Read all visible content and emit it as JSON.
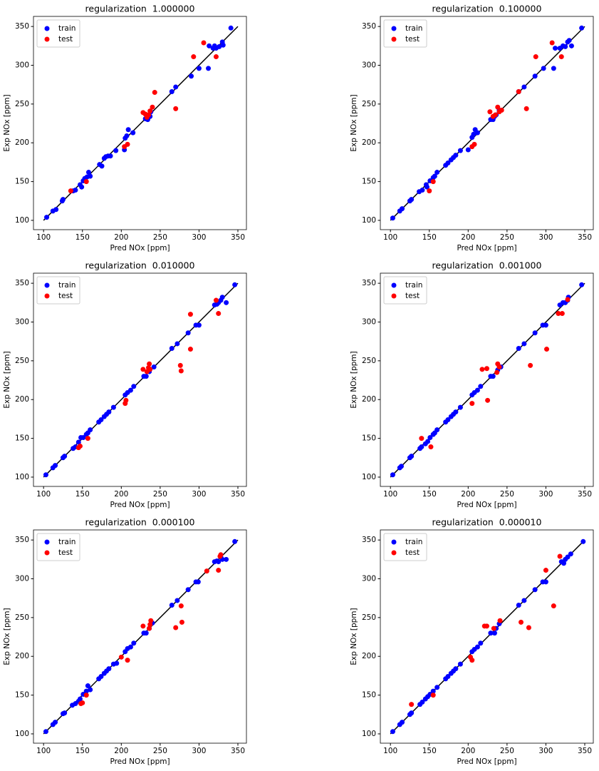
{
  "chart_data": [
    {
      "type": "scatter",
      "title": "regularization  1.000000",
      "xlabel": "Pred NOx [ppm]",
      "ylabel": "Exp NOx [ppm]",
      "xlim": [
        87,
        361
      ],
      "ylim": [
        88,
        363
      ],
      "xticks": [
        100,
        150,
        200,
        250,
        300,
        350
      ],
      "yticks": [
        100,
        150,
        200,
        250,
        300,
        350
      ],
      "legend": "upper left",
      "line": {
        "x": [
          100,
          350
        ],
        "y": [
          100,
          350
        ],
        "color": "#000000"
      },
      "series": [
        {
          "name": "train",
          "color": "#0000ff",
          "x": [
            104,
            112,
            116,
            124,
            125,
            138,
            141,
            147,
            149,
            151,
            153,
            156,
            158,
            160,
            172,
            175,
            178,
            180,
            183,
            186,
            193,
            204,
            205,
            207,
            209,
            215,
            231,
            234,
            237,
            238,
            265,
            270,
            290,
            300,
            312,
            313,
            318,
            320,
            322,
            326,
            330,
            331,
            341
          ],
          "y": [
            104,
            112,
            114,
            125,
            127,
            138,
            139,
            146,
            143,
            151,
            154,
            156,
            162,
            157,
            172,
            170,
            180,
            182,
            183,
            183,
            190,
            191,
            206,
            209,
            217,
            213,
            231,
            230,
            234,
            240,
            266,
            272,
            286,
            296,
            296,
            325,
            322,
            325,
            322,
            324,
            330,
            326,
            348
          ]
        },
        {
          "name": "test",
          "color": "#ff0000",
          "x": [
            135,
            155,
            204,
            208,
            228,
            231,
            233,
            235,
            237,
            240,
            243,
            270,
            293,
            306,
            322
          ],
          "y": [
            138,
            150,
            195,
            198,
            239,
            237,
            233,
            236,
            241,
            246,
            265,
            244,
            311,
            329,
            311
          ]
        }
      ]
    },
    {
      "type": "scatter",
      "title": "regularization  0.100000",
      "xlabel": "Pred NOx [ppm]",
      "ylabel": "Exp NOx [ppm]",
      "xlim": [
        87,
        361
      ],
      "ylim": [
        88,
        363
      ],
      "xticks": [
        100,
        150,
        200,
        250,
        300,
        350
      ],
      "yticks": [
        100,
        150,
        200,
        250,
        300,
        350
      ],
      "legend": "upper left",
      "line": {
        "x": [
          100,
          350
        ],
        "y": [
          100,
          350
        ],
        "color": "#000000"
      },
      "series": [
        {
          "name": "train",
          "color": "#0000ff",
          "x": [
            103,
            112,
            115,
            125,
            127,
            137,
            141,
            146,
            147,
            151,
            155,
            157,
            160,
            171,
            174,
            178,
            181,
            184,
            190,
            200,
            205,
            207,
            209,
            212,
            229,
            232,
            234,
            236,
            240,
            265,
            272,
            286,
            297,
            310,
            312,
            318,
            322,
            325,
            328,
            330,
            333,
            346
          ],
          "y": [
            103,
            112,
            115,
            125,
            127,
            137,
            139,
            146,
            143,
            151,
            155,
            157,
            162,
            171,
            174,
            178,
            181,
            184,
            190,
            191,
            207,
            211,
            217,
            213,
            230,
            230,
            234,
            236,
            242,
            266,
            272,
            286,
            296,
            296,
            322,
            322,
            325,
            324,
            330,
            332,
            325,
            348
          ]
        },
        {
          "name": "test",
          "color": "#ff0000",
          "x": [
            150,
            155,
            205,
            208,
            228,
            232,
            235,
            238,
            240,
            243,
            265,
            275,
            287,
            308,
            320
          ],
          "y": [
            138,
            150,
            195,
            198,
            240,
            234,
            236,
            246,
            240,
            242,
            266,
            244,
            311,
            329,
            311
          ]
        }
      ]
    },
    {
      "type": "scatter",
      "title": "regularization  0.010000",
      "xlabel": "Pred NOx [ppm]",
      "ylabel": "Exp NOx [ppm]",
      "xlim": [
        87,
        361
      ],
      "ylim": [
        88,
        363
      ],
      "xticks": [
        100,
        150,
        200,
        250,
        300,
        350
      ],
      "yticks": [
        100,
        150,
        200,
        250,
        300,
        350
      ],
      "legend": "upper left",
      "line": {
        "x": [
          100,
          350
        ],
        "y": [
          100,
          350
        ],
        "color": "#000000"
      },
      "series": [
        {
          "name": "train",
          "color": "#0000ff",
          "x": [
            103,
            112,
            115,
            125,
            127,
            138,
            141,
            145,
            148,
            151,
            155,
            157,
            160,
            171,
            174,
            178,
            181,
            184,
            190,
            205,
            208,
            212,
            216,
            229,
            232,
            236,
            242,
            265,
            272,
            286,
            296,
            300,
            320,
            323,
            325,
            328,
            330,
            335,
            346
          ],
          "y": [
            103,
            112,
            115,
            125,
            127,
            137,
            139,
            145,
            151,
            151,
            155,
            157,
            161,
            171,
            174,
            178,
            181,
            184,
            190,
            206,
            209,
            212,
            217,
            230,
            230,
            236,
            242,
            266,
            272,
            286,
            296,
            296,
            322,
            323,
            325,
            328,
            332,
            325,
            348
          ]
        },
        {
          "name": "test",
          "color": "#ff0000",
          "x": [
            145,
            147,
            157,
            205,
            206,
            228,
            233,
            235,
            236,
            237,
            276,
            277,
            289,
            289,
            322,
            325
          ],
          "y": [
            138,
            140,
            150,
            195,
            199,
            239,
            236,
            241,
            246,
            239,
            244,
            237,
            310,
            265,
            328,
            311
          ]
        }
      ]
    },
    {
      "type": "scatter",
      "title": "regularization  0.001000",
      "xlabel": "Pred NOx [ppm]",
      "ylabel": "Exp NOx [ppm]",
      "xlim": [
        87,
        361
      ],
      "ylim": [
        88,
        363
      ],
      "xticks": [
        100,
        150,
        200,
        250,
        300,
        350
      ],
      "yticks": [
        100,
        150,
        200,
        250,
        300,
        350
      ],
      "legend": "upper left",
      "line": {
        "x": [
          100,
          350
        ],
        "y": [
          100,
          350
        ],
        "color": "#000000"
      },
      "series": [
        {
          "name": "train",
          "color": "#0000ff",
          "x": [
            103,
            112,
            114,
            125,
            127,
            138,
            140,
            145,
            148,
            151,
            155,
            157,
            160,
            171,
            174,
            178,
            181,
            184,
            190,
            205,
            208,
            212,
            216,
            229,
            232,
            238,
            242,
            265,
            272,
            286,
            296,
            300,
            318,
            322,
            325,
            328,
            329,
            346
          ],
          "y": [
            103,
            112,
            114,
            125,
            127,
            137,
            139,
            143,
            146,
            151,
            155,
            157,
            161,
            171,
            174,
            178,
            181,
            184,
            190,
            206,
            209,
            212,
            217,
            230,
            230,
            238,
            242,
            266,
            272,
            286,
            296,
            296,
            322,
            325,
            325,
            328,
            332,
            348
          ]
        },
        {
          "name": "test",
          "color": "#ff0000",
          "x": [
            140,
            152,
            205,
            218,
            224,
            225,
            237,
            238,
            240,
            280,
            301,
            316,
            321,
            328
          ],
          "y": [
            150,
            139,
            195,
            239,
            240,
            199,
            235,
            246,
            242,
            244,
            265,
            311,
            311,
            329
          ]
        }
      ]
    },
    {
      "type": "scatter",
      "title": "regularization  0.000100",
      "xlabel": "Pred NOx [ppm]",
      "ylabel": "Exp NOx [ppm]",
      "xlim": [
        87,
        361
      ],
      "ylim": [
        88,
        363
      ],
      "xticks": [
        100,
        150,
        200,
        250,
        300,
        350
      ],
      "yticks": [
        100,
        150,
        200,
        250,
        300,
        350
      ],
      "legend": "upper left",
      "line": {
        "x": [
          100,
          350
        ],
        "y": [
          100,
          350
        ],
        "color": "#000000"
      },
      "series": [
        {
          "name": "train",
          "color": "#0000ff",
          "x": [
            103,
            112,
            115,
            125,
            127,
            137,
            141,
            145,
            147,
            151,
            155,
            157,
            160,
            171,
            174,
            178,
            181,
            184,
            190,
            194,
            205,
            208,
            212,
            216,
            229,
            232,
            236,
            240,
            265,
            272,
            286,
            296,
            299,
            320,
            323,
            325,
            328,
            330,
            335,
            346
          ],
          "y": [
            103,
            112,
            115,
            126,
            127,
            137,
            139,
            142,
            145,
            151,
            155,
            162,
            157,
            171,
            174,
            178,
            181,
            184,
            190,
            191,
            206,
            210,
            212,
            217,
            230,
            230,
            236,
            243,
            266,
            272,
            286,
            296,
            296,
            322,
            323,
            322,
            328,
            325,
            325,
            348
          ]
        },
        {
          "name": "test",
          "color": "#ff0000",
          "x": [
            148,
            150,
            155,
            200,
            208,
            228,
            236,
            237,
            238,
            270,
            277,
            278,
            310,
            325,
            327,
            328
          ],
          "y": [
            139,
            140,
            150,
            199,
            195,
            239,
            236,
            241,
            246,
            237,
            265,
            244,
            310,
            311,
            329,
            331
          ]
        }
      ]
    },
    {
      "type": "scatter",
      "title": "regularization  0.000010",
      "xlabel": "Pred NOx [ppm]",
      "ylabel": "Exp NOx [ppm]",
      "xlim": [
        87,
        361
      ],
      "ylim": [
        88,
        363
      ],
      "xticks": [
        100,
        150,
        200,
        250,
        300,
        350
      ],
      "yticks": [
        100,
        150,
        200,
        250,
        300,
        350
      ],
      "legend": "upper left",
      "line": {
        "x": [
          100,
          350
        ],
        "y": [
          100,
          350
        ],
        "color": "#000000"
      },
      "series": [
        {
          "name": "train",
          "color": "#0000ff",
          "x": [
            103,
            112,
            115,
            125,
            127,
            138,
            141,
            145,
            148,
            151,
            155,
            160,
            171,
            174,
            178,
            181,
            184,
            190,
            205,
            208,
            212,
            216,
            229,
            234,
            236,
            240,
            265,
            272,
            286,
            296,
            300,
            320,
            323,
            325,
            328,
            332,
            348
          ],
          "y": [
            103,
            112,
            115,
            125,
            127,
            138,
            141,
            145,
            148,
            151,
            155,
            160,
            171,
            174,
            178,
            181,
            184,
            190,
            206,
            209,
            212,
            217,
            230,
            230,
            236,
            242,
            266,
            272,
            286,
            296,
            296,
            322,
            320,
            325,
            328,
            332,
            348
          ]
        },
        {
          "name": "test",
          "color": "#ff0000",
          "x": [
            127,
            155,
            203,
            205,
            221,
            224,
            233,
            241,
            268,
            278,
            300,
            310,
            318
          ],
          "y": [
            138,
            150,
            199,
            195,
            239,
            239,
            236,
            246,
            244,
            237,
            311,
            265,
            329
          ]
        }
      ]
    }
  ]
}
